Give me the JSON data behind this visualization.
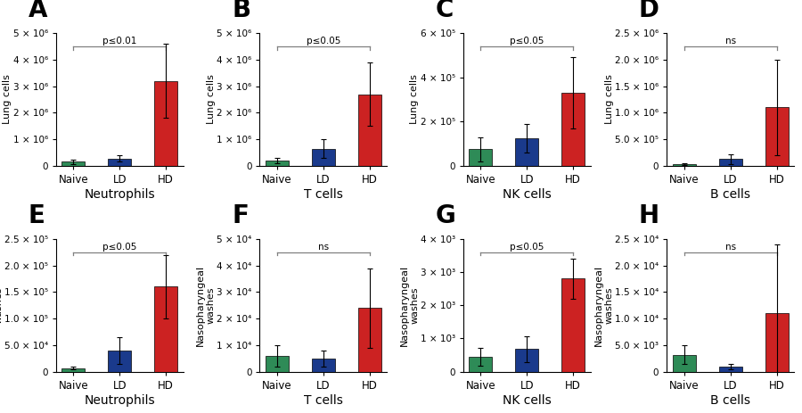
{
  "panels": [
    {
      "label": "A",
      "title": "Neutrophils",
      "ylabel": "Lung cells",
      "ylim": [
        0,
        5000000.0
      ],
      "yticks": [
        0,
        1000000.0,
        2000000.0,
        3000000.0,
        4000000.0,
        5000000.0
      ],
      "ytick_labels": [
        "0",
        "1 × 10⁶",
        "2 × 10⁶",
        "3 × 10⁶",
        "4 × 10⁶",
        "5 × 10⁶"
      ],
      "values": [
        150000,
        280000,
        3200000
      ],
      "errors": [
        80000,
        120000,
        1400000
      ],
      "sig_text": "p≤0.01",
      "sig_from": 0,
      "sig_to": 2,
      "row": 0
    },
    {
      "label": "B",
      "title": "T cells",
      "ylabel": "Lung cells",
      "ylim": [
        0,
        5000000.0
      ],
      "yticks": [
        0,
        1000000.0,
        2000000.0,
        3000000.0,
        4000000.0,
        5000000.0
      ],
      "ytick_labels": [
        "0",
        "1 × 10⁶",
        "2 × 10⁶",
        "3 × 10⁶",
        "4 × 10⁶",
        "5 × 10⁶"
      ],
      "values": [
        200000,
        650000,
        2700000
      ],
      "errors": [
        100000,
        350000,
        1200000
      ],
      "sig_text": "p≤0.05",
      "sig_from": 0,
      "sig_to": 2,
      "row": 0
    },
    {
      "label": "C",
      "title": "NK cells",
      "ylabel": "Lung cells",
      "ylim": [
        0,
        600000.0
      ],
      "yticks": [
        0,
        200000.0,
        400000.0,
        600000.0
      ],
      "ytick_labels": [
        "0",
        "2 × 10⁵",
        "4 × 10⁵",
        "6 × 10⁵"
      ],
      "values": [
        75000,
        125000,
        330000
      ],
      "errors": [
        55000,
        65000,
        160000
      ],
      "sig_text": "p≤0.05",
      "sig_from": 0,
      "sig_to": 2,
      "row": 0
    },
    {
      "label": "D",
      "title": "B cells",
      "ylabel": "Lung cells",
      "ylim": [
        0,
        2500000.0
      ],
      "yticks": [
        0,
        500000.0,
        1000000.0,
        1500000.0,
        2000000.0,
        2500000.0
      ],
      "ytick_labels": [
        "0",
        "5.0 × 10⁵",
        "1.0 × 10⁶",
        "1.5 × 10⁶",
        "2.0 × 10⁶",
        "2.5 × 10⁶"
      ],
      "values": [
        30000,
        130000,
        1100000
      ],
      "errors": [
        20000,
        90000,
        900000
      ],
      "sig_text": "ns",
      "sig_from": 0,
      "sig_to": 2,
      "row": 0
    },
    {
      "label": "E",
      "title": "Neutrophils",
      "ylabel": "Nasopharyngeal\nwashes",
      "ylim": [
        0,
        250000.0
      ],
      "yticks": [
        0,
        50000.0,
        100000.0,
        150000.0,
        200000.0,
        250000.0
      ],
      "ytick_labels": [
        "0",
        "5.0 × 10⁴",
        "1.0 × 10⁵",
        "1.5 × 10⁵",
        "2.0 × 10⁵",
        "2.5 × 10⁵"
      ],
      "values": [
        7000,
        40000,
        160000
      ],
      "errors": [
        3000,
        25000,
        60000
      ],
      "sig_text": "p≤0.05",
      "sig_from": 0,
      "sig_to": 2,
      "row": 1
    },
    {
      "label": "F",
      "title": "T cells",
      "ylabel": "Nasopharyngeal\nwashes",
      "ylim": [
        0,
        50000.0
      ],
      "yticks": [
        0,
        10000.0,
        20000.0,
        30000.0,
        40000.0,
        50000.0
      ],
      "ytick_labels": [
        "0",
        "1 × 10⁴",
        "2 × 10⁴",
        "3 × 10⁴",
        "4 × 10⁴",
        "5 × 10⁴"
      ],
      "values": [
        6000,
        5000,
        24000
      ],
      "errors": [
        4000,
        3000,
        15000
      ],
      "sig_text": "ns",
      "sig_from": 0,
      "sig_to": 2,
      "row": 1
    },
    {
      "label": "G",
      "title": "NK cells",
      "ylabel": "Nasopharyngeal\nwashes",
      "ylim": [
        0,
        4000.0
      ],
      "yticks": [
        0,
        1000.0,
        2000.0,
        3000.0,
        4000.0
      ],
      "ytick_labels": [
        "0",
        "1 × 10³",
        "2 × 10³",
        "3 × 10³",
        "4 × 10³"
      ],
      "values": [
        450,
        680,
        2800
      ],
      "errors": [
        280,
        400,
        600
      ],
      "sig_text": "p≤0.05",
      "sig_from": 0,
      "sig_to": 2,
      "row": 1
    },
    {
      "label": "H",
      "title": "B cells",
      "ylabel": "Nasopharyngeal\nwashes",
      "ylim": [
        0,
        25000.0
      ],
      "yticks": [
        0,
        5000,
        10000.0,
        15000.0,
        20000.0,
        25000.0
      ],
      "ytick_labels": [
        "0",
        "5.0 × 10³",
        "1.0 × 10⁴",
        "1.5 × 10⁴",
        "2.0 × 10⁴",
        "2.5 × 10⁴"
      ],
      "values": [
        3200,
        900,
        11000
      ],
      "errors": [
        1800,
        500,
        13000
      ],
      "sig_text": "ns",
      "sig_from": 0,
      "sig_to": 2,
      "row": 1
    }
  ],
  "bar_colors": [
    "#2e8b57",
    "#1a3a8c",
    "#cc2222"
  ],
  "categories": [
    "Naive",
    "LD",
    "HD"
  ],
  "bg_color": "#ffffff",
  "label_fontsize": 20,
  "title_fontsize": 10,
  "tick_fontsize": 7.5,
  "ylabel_fontsize": 8,
  "sig_fontsize": 7.5,
  "cat_fontsize": 8.5
}
